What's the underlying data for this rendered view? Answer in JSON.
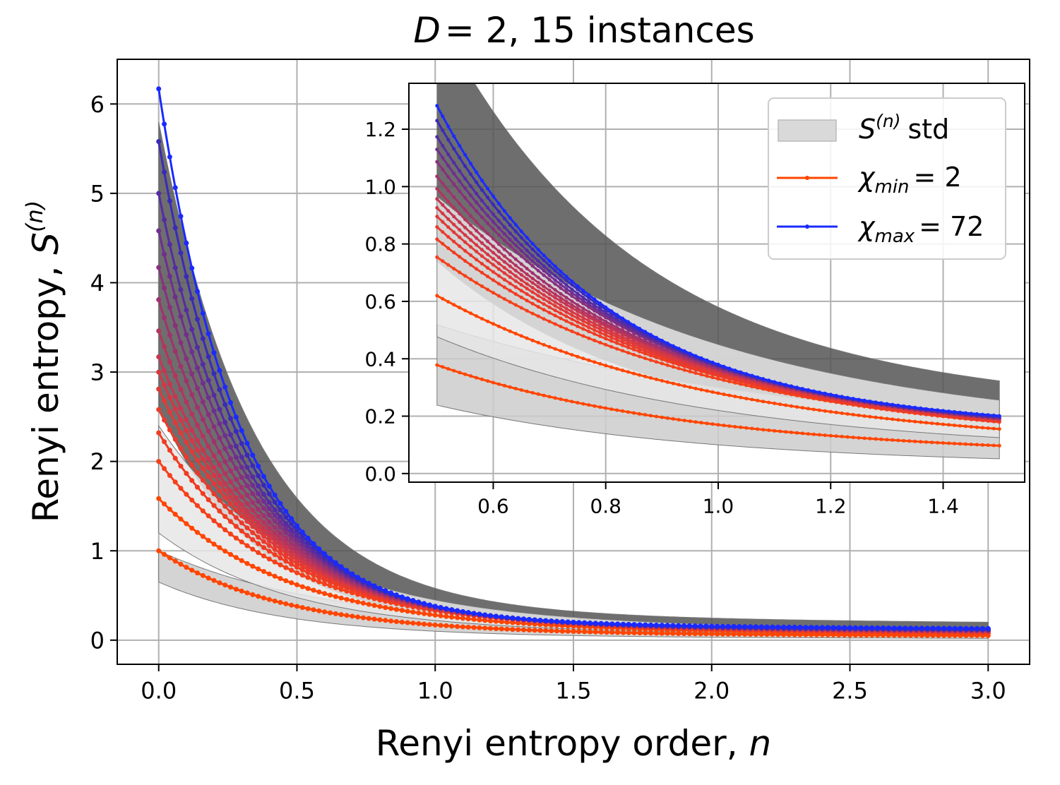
{
  "chart_data": {
    "type": "line",
    "title_text": "= 2, 15 instances",
    "title_var": "D",
    "xlabel": "Renyi entropy order, ",
    "xlabel_var": "n",
    "ylabel": "Renyi entropy, ",
    "ylabel_var": "S",
    "ylabel_sup": "(n)",
    "main": {
      "xlim": [
        -0.15,
        3.15
      ],
      "ylim": [
        -0.27,
        6.5
      ],
      "xticks": [
        0.0,
        0.5,
        1.0,
        1.5,
        2.0,
        2.5,
        3.0
      ],
      "xtick_labels": [
        "0.0",
        "0.5",
        "1.0",
        "1.5",
        "2.0",
        "2.5",
        "3.0"
      ],
      "yticks": [
        0,
        1,
        2,
        3,
        4,
        5,
        6
      ],
      "ytick_labels": [
        "0",
        "1",
        "2",
        "3",
        "4",
        "5",
        "6"
      ],
      "grid": true,
      "n_range": [
        0.0,
        3.0
      ]
    },
    "inset": {
      "xlim": [
        0.45,
        1.545
      ],
      "ylim": [
        -0.03,
        1.36
      ],
      "xticks": [
        0.6,
        0.8,
        1.0,
        1.2,
        1.4
      ],
      "xtick_labels": [
        "0.6",
        "0.8",
        "1.0",
        "1.2",
        "1.4"
      ],
      "yticks": [
        0.0,
        0.2,
        0.4,
        0.6,
        0.8,
        1.0,
        1.2
      ],
      "ytick_labels": [
        "0.0",
        "0.2",
        "0.4",
        "0.6",
        "0.8",
        "1.0",
        "1.2"
      ],
      "grid": true,
      "n_range": [
        0.5,
        1.5
      ]
    },
    "series": [
      {
        "name": "chi_1",
        "S0": 1.0,
        "S1": 0.17,
        "S3": 0.05,
        "color": "#ff4500"
      },
      {
        "name": "chi_2",
        "S0": 1.585,
        "S1": 0.28,
        "S3": 0.07,
        "color": "#ff4500"
      },
      {
        "name": "chi_3",
        "S0": 2.0,
        "S1": 0.33,
        "S3": 0.08,
        "color": "#f5401a"
      },
      {
        "name": "chi_4",
        "S0": 2.32,
        "S1": 0.34,
        "S3": 0.085,
        "color": "#f03c22"
      },
      {
        "name": "chi_5",
        "S0": 2.58,
        "S1": 0.345,
        "S3": 0.09,
        "color": "#ea3a2c"
      },
      {
        "name": "chi_6",
        "S0": 2.81,
        "S1": 0.35,
        "S3": 0.095,
        "color": "#e03a38"
      },
      {
        "name": "chi_7",
        "S0": 3.0,
        "S1": 0.355,
        "S3": 0.1,
        "color": "#d43844"
      },
      {
        "name": "chi_8",
        "S0": 3.17,
        "S1": 0.36,
        "S3": 0.1,
        "color": "#c63652"
      },
      {
        "name": "chi_9",
        "S0": 3.46,
        "S1": 0.362,
        "S3": 0.105,
        "color": "#b4345f"
      },
      {
        "name": "chi_10",
        "S0": 3.81,
        "S1": 0.365,
        "S3": 0.11,
        "color": "#a0326e"
      },
      {
        "name": "chi_11",
        "S0": 4.17,
        "S1": 0.37,
        "S3": 0.11,
        "color": "#88307e"
      },
      {
        "name": "chi_12",
        "S0": 4.58,
        "S1": 0.372,
        "S3": 0.115,
        "color": "#702e90"
      },
      {
        "name": "chi_13",
        "S0": 5.0,
        "S1": 0.375,
        "S3": 0.12,
        "color": "#542ca4"
      },
      {
        "name": "chi_14",
        "S0": 5.58,
        "S1": 0.378,
        "S3": 0.125,
        "color": "#3a2ab8"
      },
      {
        "name": "chi_15",
        "S0": 6.17,
        "S1": 0.38,
        "S3": 0.13,
        "color": "#1a2aff"
      }
    ],
    "bands": [
      {
        "name": "std_dark",
        "lower": {
          "S0": 2.6,
          "S1": 0.28,
          "S3": 0.1
        },
        "upper": {
          "S0": 5.8,
          "S1": 0.58,
          "S3": 0.2
        },
        "color": "#555555"
      },
      {
        "name": "std_light",
        "lower": {
          "S0": 0.65,
          "S1": 0.1,
          "S3": 0.02
        },
        "upper": {
          "S0": 1.0,
          "S1": 0.3,
          "S3": 0.1
        },
        "color": "#cccccc"
      },
      {
        "name": "std_faint",
        "lower": {
          "S0": 1.2,
          "S1": 0.22,
          "S3": 0.06
        },
        "upper": {
          "S0": 2.4,
          "S1": 0.45,
          "S3": 0.12
        },
        "color": "#e6e6e6"
      }
    ],
    "legend": {
      "position": "top-right of inset",
      "std_label": "std",
      "std_var": "S",
      "std_sup": "(n)",
      "min_label": "= 2",
      "min_var": "χ",
      "min_sub": "min",
      "max_label": "= 72",
      "max_var": "χ",
      "max_sub": "max",
      "min_color": "#ff4500",
      "max_color": "#1a2aff",
      "std_color": "#d9d9d9"
    }
  }
}
